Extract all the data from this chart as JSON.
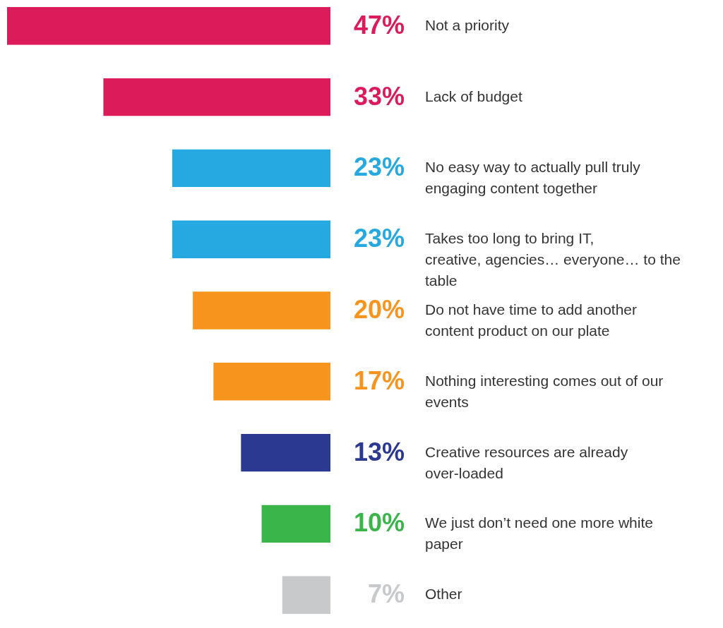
{
  "chart_data": {
    "type": "bar",
    "orientation": "horizontal",
    "categories": [
      "Not a priority",
      "Lack of budget",
      "No easy way to actually pull truly engaging content together",
      "Takes too long to bring IT, creative, agencies… everyone… to the table",
      "Do not have time to add another content product on our plate",
      "Nothing interesting comes out of our events",
      "Creative resources are already over-loaded",
      "We just don’t need one more white paper",
      "Other"
    ],
    "values": [
      47,
      33,
      23,
      23,
      20,
      17,
      13,
      10,
      7
    ],
    "colors": [
      "#db1b5a",
      "#db1b5a",
      "#25a9e0",
      "#25a9e0",
      "#f7941d",
      "#f7941d",
      "#2b3990",
      "#39b54a",
      "#c8c9cb"
    ],
    "value_labels": [
      "47%",
      "33%",
      "23%",
      "23%",
      "20%",
      "17%",
      "13%",
      "10%",
      "7%"
    ]
  }
}
